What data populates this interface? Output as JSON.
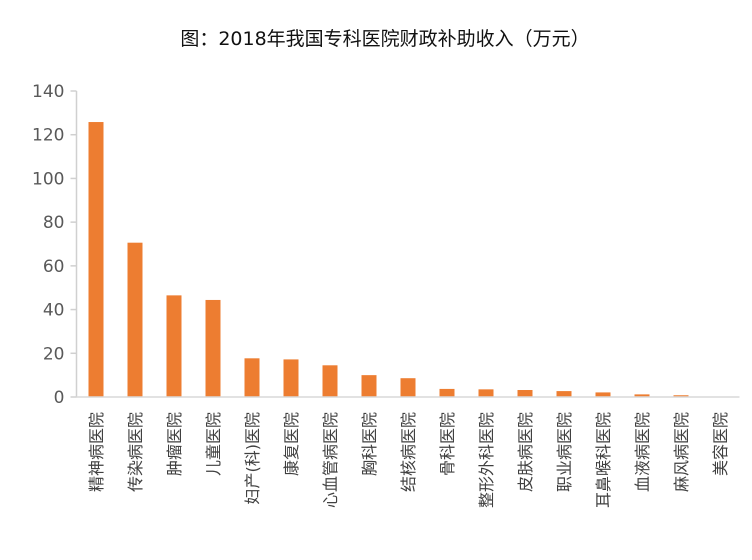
{
  "chart_data": {
    "type": "bar",
    "title": "图：2018年我国专科医院财政补助收入（万元）",
    "xlabel": "",
    "ylabel": "",
    "ylim": [
      0,
      140
    ],
    "yticks": [
      0,
      20,
      40,
      60,
      80,
      100,
      120,
      140
    ],
    "grid": false,
    "legend": "none",
    "bar_color": "#ED7D31",
    "categories": [
      "精神病医院",
      "传染病医院",
      "肿瘤医院",
      "儿童医院",
      "妇产(科)医院",
      "康复医院",
      "心血管病医院",
      "胸科医院",
      "结核病医院",
      "骨科医院",
      "整形外科医院",
      "皮肤病医院",
      "职业病医院",
      "耳鼻喉科医院",
      "血液病医院",
      "麻风病医院",
      "美容医院"
    ],
    "values": [
      125.8,
      70.6,
      46.5,
      44.4,
      17.7,
      17.2,
      14.5,
      10.0,
      8.6,
      3.7,
      3.5,
      3.2,
      2.7,
      2.1,
      1.2,
      0.8,
      0.1
    ]
  }
}
